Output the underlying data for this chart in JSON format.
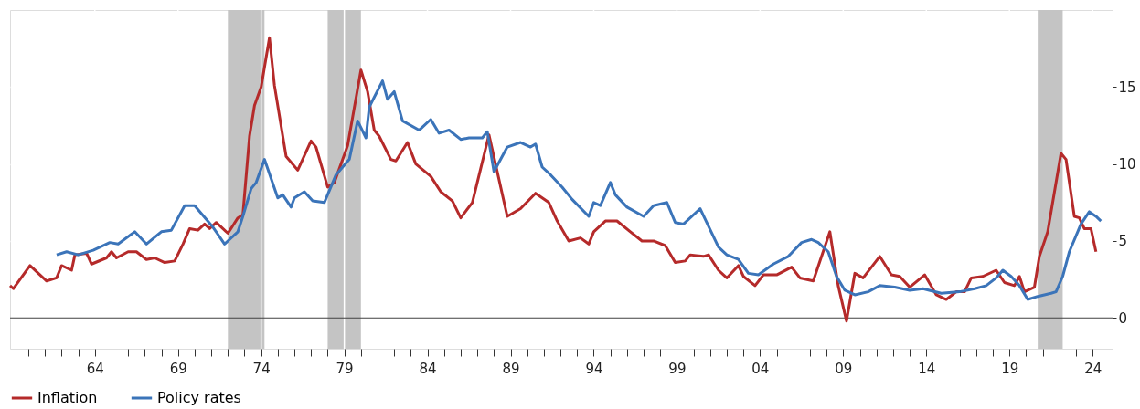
{
  "chart_data": {
    "type": "line",
    "legend": "bottom",
    "grid": true,
    "line_style": "solid",
    "xlim": [
      1958.9,
      2025.2
    ],
    "ylim": [
      -2,
      20
    ],
    "yticks": [
      0,
      5,
      10,
      15
    ],
    "xticks": [
      {
        "value": 1960,
        "label": null
      },
      {
        "value": 1961,
        "label": null
      },
      {
        "value": 1962,
        "label": null
      },
      {
        "value": 1963,
        "label": null
      },
      {
        "value": 1964,
        "label": "64"
      },
      {
        "value": 1965,
        "label": null
      },
      {
        "value": 1966,
        "label": null
      },
      {
        "value": 1967,
        "label": null
      },
      {
        "value": 1968,
        "label": null
      },
      {
        "value": 1969,
        "label": "69"
      },
      {
        "value": 1970,
        "label": null
      },
      {
        "value": 1971,
        "label": null
      },
      {
        "value": 1972,
        "label": null
      },
      {
        "value": 1973,
        "label": null
      },
      {
        "value": 1974,
        "label": "74"
      },
      {
        "value": 1975,
        "label": null
      },
      {
        "value": 1976,
        "label": null
      },
      {
        "value": 1977,
        "label": null
      },
      {
        "value": 1978,
        "label": null
      },
      {
        "value": 1979,
        "label": "79"
      },
      {
        "value": 1980,
        "label": null
      },
      {
        "value": 1981,
        "label": null
      },
      {
        "value": 1982,
        "label": null
      },
      {
        "value": 1983,
        "label": null
      },
      {
        "value": 1984,
        "label": "84"
      },
      {
        "value": 1985,
        "label": null
      },
      {
        "value": 1986,
        "label": null
      },
      {
        "value": 1987,
        "label": null
      },
      {
        "value": 1988,
        "label": null
      },
      {
        "value": 1989,
        "label": "89"
      },
      {
        "value": 1990,
        "label": null
      },
      {
        "value": 1991,
        "label": null
      },
      {
        "value": 1992,
        "label": null
      },
      {
        "value": 1993,
        "label": null
      },
      {
        "value": 1994,
        "label": "94"
      },
      {
        "value": 1995,
        "label": null
      },
      {
        "value": 1996,
        "label": null
      },
      {
        "value": 1997,
        "label": null
      },
      {
        "value": 1998,
        "label": null
      },
      {
        "value": 1999,
        "label": "99"
      },
      {
        "value": 2000,
        "label": null
      },
      {
        "value": 2001,
        "label": null
      },
      {
        "value": 2002,
        "label": null
      },
      {
        "value": 2003,
        "label": null
      },
      {
        "value": 2004,
        "label": "04"
      },
      {
        "value": 2005,
        "label": null
      },
      {
        "value": 2006,
        "label": null
      },
      {
        "value": 2007,
        "label": null
      },
      {
        "value": 2008,
        "label": null
      },
      {
        "value": 2009,
        "label": "09"
      },
      {
        "value": 2010,
        "label": null
      },
      {
        "value": 2011,
        "label": null
      },
      {
        "value": 2012,
        "label": null
      },
      {
        "value": 2013,
        "label": null
      },
      {
        "value": 2014,
        "label": "14"
      },
      {
        "value": 2015,
        "label": null
      },
      {
        "value": 2016,
        "label": null
      },
      {
        "value": 2017,
        "label": null
      },
      {
        "value": 2018,
        "label": null
      },
      {
        "value": 2019,
        "label": "19"
      },
      {
        "value": 2020,
        "label": null
      },
      {
        "value": 2021,
        "label": null
      },
      {
        "value": 2022,
        "label": null
      },
      {
        "value": 2023,
        "label": null
      },
      {
        "value": 2024,
        "label": "24"
      }
    ],
    "ref_lines": [
      {
        "axis": "y",
        "value": 0,
        "color": "#404040"
      }
    ],
    "bands": [
      {
        "axis": "x",
        "from": 1972.0,
        "to": 1974.2,
        "color": "#c4c4c4"
      },
      {
        "axis": "x",
        "from": 1978.0,
        "to": 1980.0,
        "color": "#c4c4c4"
      },
      {
        "axis": "x",
        "from": 2020.7,
        "to": 2022.2,
        "color": "#c4c4c4"
      }
    ],
    "series": [
      {
        "name": "Inflation",
        "color": "#b52a2a",
        "x": [
          1958.9,
          1959.1,
          1960.1,
          1961.1,
          1961.7,
          1962.0,
          1962.6,
          1962.8,
          1963.5,
          1963.8,
          1964.7,
          1965.0,
          1965.3,
          1966.0,
          1966.5,
          1967.1,
          1967.6,
          1968.2,
          1968.8,
          1969.3,
          1969.7,
          1970.2,
          1970.6,
          1970.9,
          1971.3,
          1972.0,
          1972.6,
          1972.9,
          1973.3,
          1973.6,
          1974.0,
          1974.5,
          1974.8,
          1975.5,
          1976.2,
          1977.0,
          1977.3,
          1978.0,
          1978.4,
          1979.2,
          1980.0,
          1980.4,
          1980.8,
          1981.1,
          1981.8,
          1982.1,
          1982.8,
          1983.3,
          1984.2,
          1984.8,
          1985.5,
          1986.0,
          1986.7,
          1987.7,
          1988.8,
          1989.6,
          1990.5,
          1991.3,
          1991.8,
          1992.5,
          1993.2,
          1993.7,
          1994.0,
          1994.7,
          1995.4,
          1996.2,
          1996.9,
          1997.6,
          1998.3,
          1998.9,
          1999.5,
          1999.8,
          2000.6,
          2000.9,
          2001.5,
          2002.0,
          2002.7,
          2003.0,
          2003.7,
          2004.2,
          2005.0,
          2005.9,
          2006.4,
          2007.2,
          2008.2,
          2008.7,
          2009.2,
          2009.7,
          2010.2,
          2011.2,
          2011.9,
          2012.4,
          2013.0,
          2013.9,
          2014.6,
          2015.2,
          2015.8,
          2016.3,
          2016.7,
          2017.4,
          2018.2,
          2018.7,
          2019.3,
          2019.6,
          2019.9,
          2020.5,
          2020.8,
          2021.3,
          2022.1,
          2022.4,
          2022.9,
          2023.2,
          2023.5,
          2023.9,
          2024.2
        ],
        "values": [
          2.1,
          1.9,
          3.4,
          2.4,
          2.6,
          3.4,
          3.1,
          4.1,
          4.2,
          3.5,
          3.9,
          4.3,
          3.9,
          4.3,
          4.3,
          3.8,
          3.9,
          3.6,
          3.7,
          4.8,
          5.8,
          5.7,
          6.1,
          5.8,
          6.2,
          5.5,
          6.5,
          6.7,
          11.8,
          13.8,
          15.0,
          18.2,
          15.1,
          10.5,
          9.6,
          11.5,
          11.1,
          8.5,
          8.8,
          11.2,
          16.1,
          14.7,
          12.2,
          11.8,
          10.3,
          10.2,
          11.4,
          10.0,
          9.2,
          8.2,
          7.6,
          6.5,
          7.5,
          11.9,
          6.6,
          7.1,
          8.1,
          7.5,
          6.3,
          5.0,
          5.2,
          4.8,
          5.6,
          6.3,
          6.3,
          5.6,
          5.0,
          5.0,
          4.7,
          3.6,
          3.7,
          4.1,
          4.0,
          4.1,
          3.1,
          2.6,
          3.4,
          2.7,
          2.1,
          2.8,
          2.8,
          3.3,
          2.6,
          2.4,
          5.6,
          2.1,
          -0.2,
          2.9,
          2.6,
          4.0,
          2.8,
          2.7,
          2.0,
          2.8,
          1.5,
          1.2,
          1.7,
          1.7,
          2.6,
          2.7,
          3.1,
          2.3,
          2.1,
          2.7,
          1.7,
          2.0,
          4.0,
          5.6,
          10.7,
          10.3,
          6.6,
          6.5,
          5.8,
          5.8,
          4.3
        ]
      },
      {
        "name": "Policy rates",
        "color": "#3b74b9",
        "x": [
          1961.7,
          1962.3,
          1963.0,
          1963.9,
          1964.9,
          1965.4,
          1966.4,
          1967.1,
          1968.0,
          1968.6,
          1969.4,
          1970.0,
          1971.1,
          1971.8,
          1972.6,
          1972.9,
          1973.4,
          1973.7,
          1974.2,
          1975.0,
          1975.3,
          1975.8,
          1976.0,
          1976.6,
          1977.1,
          1977.8,
          1978.5,
          1979.3,
          1979.8,
          1980.3,
          1980.5,
          1981.3,
          1981.6,
          1982.0,
          1982.5,
          1983.5,
          1984.2,
          1984.7,
          1985.3,
          1986.0,
          1986.5,
          1987.3,
          1987.6,
          1988.0,
          1988.8,
          1989.6,
          1990.2,
          1990.5,
          1990.9,
          1991.4,
          1992.1,
          1992.7,
          1993.7,
          1994.0,
          1994.4,
          1995.0,
          1995.3,
          1996.0,
          1997.0,
          1997.6,
          1998.4,
          1998.9,
          1999.4,
          2000.4,
          2001.5,
          2002.0,
          2002.7,
          2003.3,
          2003.9,
          2004.8,
          2005.7,
          2006.5,
          2007.1,
          2007.5,
          2008.1,
          2008.6,
          2009.1,
          2009.7,
          2010.5,
          2011.2,
          2012.1,
          2013.0,
          2013.8,
          2014.9,
          2016.0,
          2016.9,
          2017.6,
          2018.2,
          2018.6,
          2019.1,
          2019.6,
          2020.1,
          2020.7,
          2021.5,
          2021.8,
          2022.2,
          2022.6,
          2023.3,
          2023.8,
          2024.2,
          2024.5
        ],
        "values": [
          4.1,
          4.3,
          4.1,
          4.4,
          4.9,
          4.8,
          5.6,
          4.8,
          5.6,
          5.7,
          7.3,
          7.3,
          5.9,
          4.8,
          5.6,
          6.6,
          8.4,
          8.8,
          10.3,
          7.8,
          8.0,
          7.2,
          7.8,
          8.2,
          7.6,
          7.5,
          9.3,
          10.3,
          12.8,
          11.7,
          13.7,
          15.4,
          14.2,
          14.7,
          12.8,
          12.2,
          12.9,
          12.0,
          12.2,
          11.6,
          11.7,
          11.7,
          12.1,
          9.5,
          11.1,
          11.4,
          11.1,
          11.3,
          9.8,
          9.3,
          8.5,
          7.7,
          6.6,
          7.5,
          7.3,
          8.8,
          8.0,
          7.2,
          6.6,
          7.3,
          7.5,
          6.2,
          6.1,
          7.1,
          4.6,
          4.1,
          3.8,
          2.9,
          2.8,
          3.5,
          4.0,
          4.9,
          5.1,
          4.9,
          4.3,
          2.7,
          1.8,
          1.5,
          1.7,
          2.1,
          2.0,
          1.8,
          1.9,
          1.6,
          1.7,
          1.9,
          2.1,
          2.6,
          3.1,
          2.7,
          2.1,
          1.2,
          1.4,
          1.6,
          1.7,
          2.7,
          4.3,
          6.1,
          6.9,
          6.6,
          6.3
        ]
      }
    ]
  }
}
